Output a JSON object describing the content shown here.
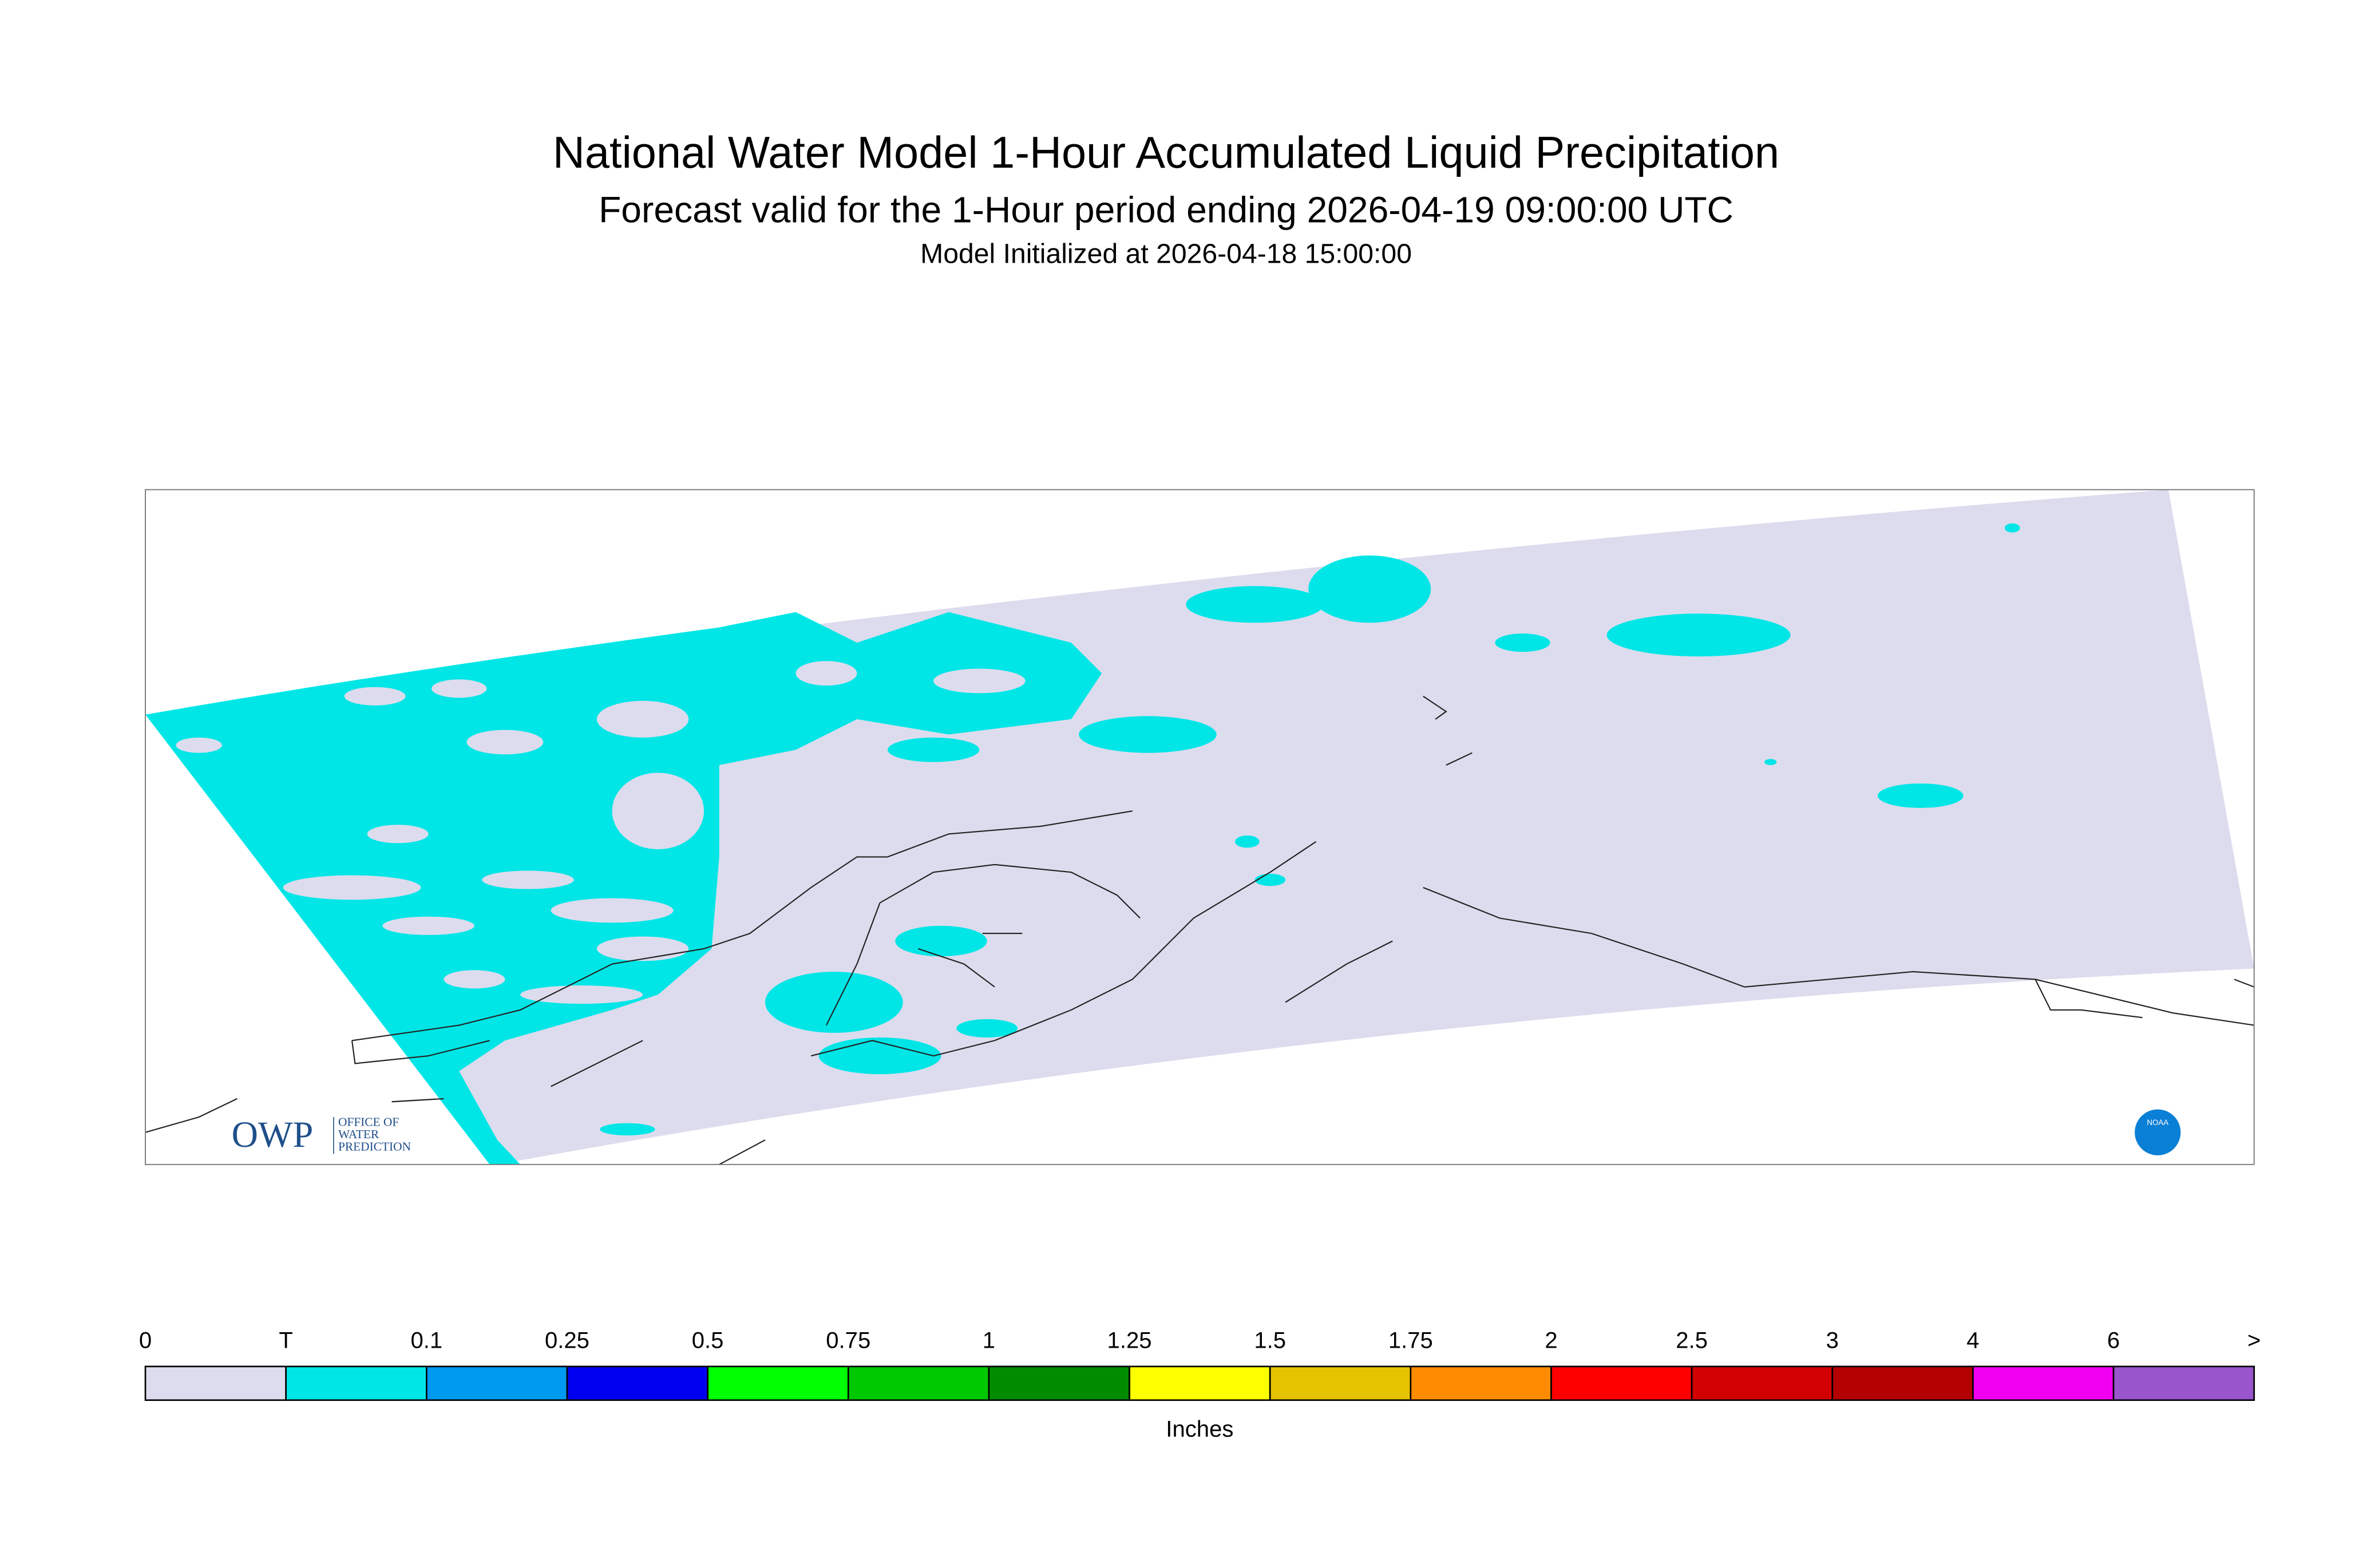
{
  "header": {
    "title": "National Water Model 1-Hour Accumulated Liquid Precipitation",
    "subtitle": "Forecast valid for the 1-Hour period ending 2026-04-19 09:00:00 UTC",
    "initialized": "Model Initialized at 2026-04-18 15:00:00"
  },
  "logos": {
    "owp": "OWP",
    "owp_name": [
      "OFFICE OF",
      "WATER",
      "PREDICTION"
    ],
    "noaa": "NOAA"
  },
  "colorbar": {
    "labels": [
      "0",
      "T",
      "0.1",
      "0.25",
      "0.5",
      "0.75",
      "1",
      "1.25",
      "1.5",
      "1.75",
      "2",
      "2.5",
      "3",
      "4",
      "6",
      ">"
    ],
    "colors": [
      "#dcdcee",
      "#00e6e6",
      "#0099f0",
      "#0000f0",
      "#00ff00",
      "#00c800",
      "#008c00",
      "#ffff00",
      "#e6c300",
      "#ff8c00",
      "#ff0000",
      "#d20000",
      "#b40000",
      "#f000f0",
      "#9955cc"
    ],
    "unit": "Inches"
  }
}
